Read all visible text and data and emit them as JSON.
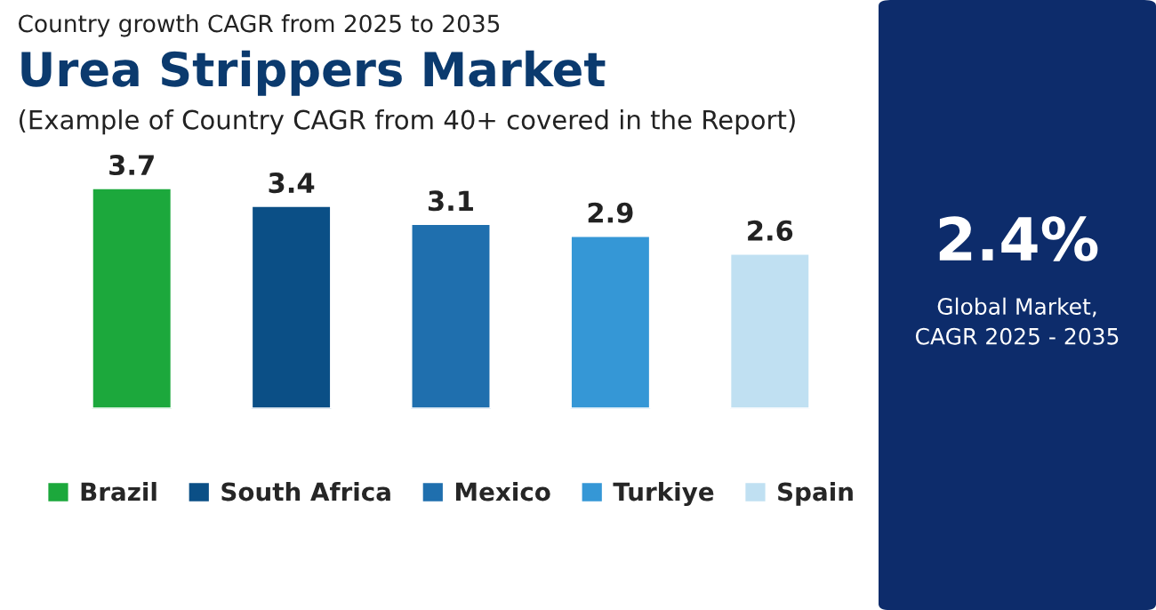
{
  "chart_data": {
    "type": "bar",
    "title": "Urea Strippers Market",
    "subtitle": "(Example of Country CAGR from 40+ covered in the Report)",
    "annotations": [
      "Country growth CAGR from 2025 to 2035",
      "2.4%",
      "Global Market,\nCAGR 2025 - 2035"
    ],
    "categories": [
      null,
      null,
      null,
      null,
      null
    ],
    "series": [
      {
        "name": "Brazil",
        "color": "#1ca83c",
        "values": [
          3.7,
          null,
          null,
          null,
          null
        ]
      },
      {
        "name": "South Africa",
        "color": "#0b4f86",
        "values": [
          null,
          3.4,
          null,
          null,
          null
        ]
      },
      {
        "name": "Mexico",
        "color": "#1f6fae",
        "values": [
          null,
          null,
          3.1,
          null,
          null
        ]
      },
      {
        "name": "Turkiye",
        "color": "#3597d6",
        "values": [
          null,
          null,
          null,
          2.9,
          null
        ]
      },
      {
        "name": "Spain",
        "color": "#c0e0f2",
        "values": [
          null,
          null,
          null,
          null,
          2.6
        ]
      }
    ],
    "data_labels": true,
    "stacked": true,
    "legend": "bottom",
    "grid": false
  }
}
